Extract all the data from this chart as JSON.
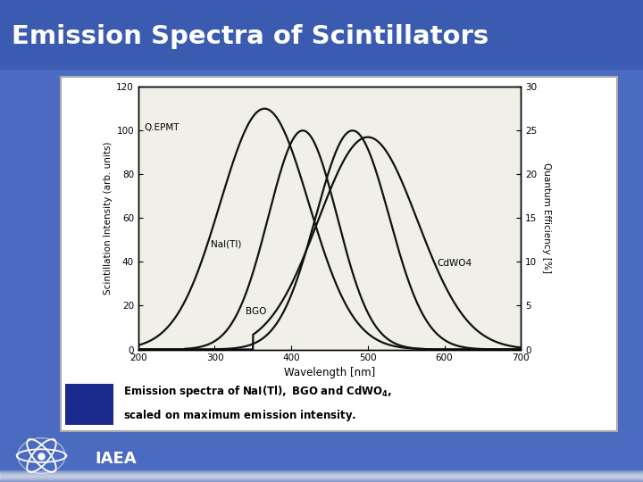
{
  "title": "Emission Spectra of Scintillators",
  "xlabel": "Wavelength [nm]",
  "ylabel_left": "Scintillation Intensity (arb. units)",
  "ylabel_right": "Quantum Efficiency [%]",
  "xlim": [
    200,
    700
  ],
  "ylim_left": [
    0,
    120
  ],
  "ylim_right": [
    0,
    30
  ],
  "xticks": [
    200,
    300,
    400,
    500,
    600,
    700
  ],
  "yticks_left": [
    0,
    20,
    40,
    60,
    80,
    100,
    120
  ],
  "yticks_right": [
    0,
    5,
    10,
    15,
    20,
    25,
    30
  ],
  "iaea_text": "IAEA",
  "bg_color": "#4A6BC0",
  "title_bg_color": "#3A5BB0",
  "title_color": "#FFFFFF",
  "white_box_color": "#FFFFFF",
  "caption_blue": "#1A2A8C",
  "plot_bg": "#F0F0E8",
  "curve_color": "#111111",
  "label_QEPMT": "Q.EPMT",
  "label_NaI": "NaI(Tl)",
  "label_BGO": "BGO",
  "label_CdWO4": "CdWO4"
}
